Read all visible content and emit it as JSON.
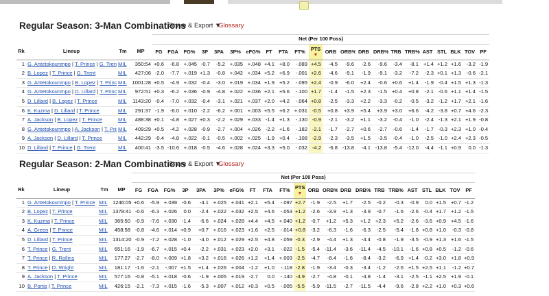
{
  "tables": [
    {
      "title": "Regular Season: 3-Man Combinations",
      "share_label": "Share & Export ▼",
      "glossary_label": "Glossary",
      "group_header": "Net (Per 100 Poss)",
      "columns": [
        "Rk",
        "Lineup",
        "Tm",
        "MP",
        "FG",
        "FGA",
        "FG%",
        "3P",
        "3PA",
        "3P%",
        "eFG%",
        "FT",
        "FTA",
        "FT%",
        "PTS",
        "ORB",
        "ORB%",
        "DRB",
        "DRB%",
        "TRB",
        "TRB%",
        "AST",
        "STL",
        "BLK",
        "TOV",
        "PF"
      ],
      "rows": [
        {
          "rk": "1",
          "players": [
            "G. Antetokounmpo",
            "T. Prince",
            "G. Trent"
          ],
          "tm": "MIL",
          "stats": [
            "350:54",
            "+0.6",
            "-6.8",
            "+.045",
            "-0.7",
            "-5.2",
            "+.035",
            "+.048",
            "+4.1",
            "+8.0",
            "-.089",
            "+4.5",
            "-4.5",
            "-9.6",
            "-2.6",
            "-9.6",
            "-3.4",
            "-8.1",
            "+1.4",
            "+1.2",
            "+1.6",
            "-3.2",
            "-1.9"
          ]
        },
        {
          "rk": "2",
          "players": [
            "B. Lopez",
            "T. Prince",
            "G. Trent"
          ],
          "tm": "MIL",
          "stats": [
            "427:06",
            "-2.0",
            "-7.7",
            "+.019",
            "+1.3",
            "-0.8",
            "+.042",
            "+.034",
            "+5.2",
            "+6.9",
            "-.001",
            "+2.6",
            "-4.6",
            "-9.1",
            "-1.9",
            "-9.1",
            "-3.2",
            "-7.2",
            "-2.3",
            "+0.1",
            "+1.3",
            "-0.6",
            "-2.1"
          ]
        },
        {
          "rk": "3",
          "players": [
            "G. Antetokounmpo",
            "B. Lopez",
            "T. Prince"
          ],
          "tm": "MIL",
          "stats": [
            "1001:28",
            "+0.5",
            "-4.9",
            "+.032",
            "-0.4",
            "-3.0",
            "+.019",
            "+.034",
            "+1.9",
            "+5.2",
            "-.095",
            "+2.4",
            "-0.9",
            "-6.0",
            "+2.4",
            "-0.6",
            "+0.6",
            "+1.4",
            "-1.9",
            "-0.4",
            "+1.5",
            "+1.3",
            "-1.3"
          ]
        },
        {
          "rk": "4",
          "players": [
            "G. Antetokounmpo",
            "D. Lillard",
            "T. Prince"
          ],
          "tm": "MIL",
          "stats": [
            "972:51",
            "+0.3",
            "-6.2",
            "+.036",
            "-0.9",
            "-4.8",
            "+.022",
            "+.036",
            "+2.1",
            "+5.6",
            "-.100",
            "+1.7",
            "-1.4",
            "-1.5",
            "+2.3",
            "-1.5",
            "+0.4",
            "+0.8",
            "-2.1",
            "-0.6",
            "+1.1",
            "+1.4",
            "-1.5"
          ]
        },
        {
          "rk": "5",
          "players": [
            "D. Lillard",
            "B. Lopez",
            "T. Prince"
          ],
          "tm": "MIL",
          "stats": [
            "1143:20",
            "-0.4",
            "-7.0",
            "+.032",
            "-0.4",
            "-3.1",
            "+.021",
            "+.037",
            "+2.0",
            "+4.2",
            "-.064",
            "+0.8",
            "-2.5",
            "-3.3",
            "+2.2",
            "-3.3",
            "-0.2",
            "-0.5",
            "-3.2",
            "-1.2",
            "+1.7",
            "+2.1",
            "-1.6"
          ]
        },
        {
          "rk": "6",
          "players": [
            "K. Kuzma",
            "D. Lillard",
            "T. Prince"
          ],
          "tm": "MIL",
          "stats": [
            "291:37",
            "-1.9",
            "-6.0",
            "+.010",
            "-2.2",
            "-6.2",
            "+.001",
            "+.003",
            "+5.5",
            "+6.2",
            "+.031",
            "-0.5",
            "+0.8",
            "+3.9",
            "+5.4",
            "+3.9",
            "+3.0",
            "+6.6",
            "-4.2",
            "-3.8",
            "+0.7",
            "+4.6",
            "-2.3"
          ]
        },
        {
          "rk": "7",
          "players": [
            "A. Jackson",
            "B. Lopez",
            "T. Prince"
          ],
          "tm": "MIL",
          "stats": [
            "488:38",
            "+0.1",
            "-4.8",
            "+.027",
            "+0.3",
            "-2.2",
            "+.029",
            "+.033",
            "-1.4",
            "+1.3",
            "-.130",
            "-0.9",
            "-2.1",
            "-3.2",
            "+1.1",
            "-3.2",
            "-0.4",
            "-1.0",
            "-2.4",
            "-1.3",
            "+2.1",
            "+1.9",
            "-0.8"
          ]
        },
        {
          "rk": "8",
          "players": [
            "G. Antetokounmpo",
            "A. Jackson",
            "T. Prince"
          ],
          "tm": "MIL",
          "stats": [
            "409:29",
            "+0.5",
            "-4.2",
            "+.028",
            "-0.9",
            "-2.7",
            "+.004",
            "+.026",
            "-2.2",
            "+1.6",
            "-.182",
            "-2.1",
            "-1.7",
            "-2.7",
            "+0.6",
            "-2.7",
            "-0.6",
            "-1.4",
            "-1.7",
            "-0.3",
            "+2.3",
            "+1.0",
            "-0.4"
          ]
        },
        {
          "rk": "9",
          "players": [
            "A. Jackson",
            "D. Lillard",
            "T. Prince"
          ],
          "tm": "MIL",
          "stats": [
            "442:29",
            "-0.4",
            "-4.8",
            "+.022",
            "-0.1",
            "-0.5",
            "+.002",
            "+.025",
            "-1.9",
            "+0.4",
            "-.108",
            "-2.9",
            "-2.3",
            "-3.5",
            "+1.5",
            "-3.5",
            "-0.4",
            "-1.0",
            "-2.5",
            "-1.0",
            "+2.4",
            "+2.3",
            "-0.5"
          ]
        },
        {
          "rk": "10",
          "players": [
            "D. Lillard",
            "T. Prince",
            "G. Trent"
          ],
          "tm": "MIL",
          "stats": [
            "400:41",
            "-3.5",
            "-10.6",
            "+.018",
            "-0.5",
            "-4.6",
            "+.028",
            "+.024",
            "+3.3",
            "+5.0",
            "-.032",
            "-4.2",
            "-6.8",
            "-13.8",
            "-4.1",
            "-13.8",
            "-5.4",
            "-12.0",
            "-4.4",
            "-1.1",
            "+0.9",
            "0.0",
            "-1.3"
          ]
        }
      ]
    },
    {
      "title": "Regular Season: 2-Man Combinations",
      "share_label": "Share & Export ▼",
      "glossary_label": "Glossary",
      "group_header": "Net (Per 100 Poss)",
      "columns": [
        "Rk",
        "Lineup",
        "Tm",
        "MP",
        "FG",
        "FGA",
        "FG%",
        "3P",
        "3PA",
        "3P%",
        "eFG%",
        "FT",
        "FTA",
        "FT%",
        "PTS",
        "ORB",
        "ORB%",
        "DRB",
        "DRB%",
        "TRB",
        "TRB%",
        "AST",
        "STL",
        "BLK",
        "TOV",
        "PF"
      ],
      "rows": [
        {
          "rk": "1",
          "players": [
            "G. Antetokounmpo",
            "T. Prince"
          ],
          "tm": "MIL",
          "stats": [
            "1246:05",
            "+0.6",
            "-5.9",
            "+.039",
            "-0.6",
            "-4.1",
            "+.025",
            "+.041",
            "+2.1",
            "+5.4",
            "-.097",
            "+2.7",
            "-1.9",
            "-2.5",
            "+1.7",
            "-2.5",
            "-0.2",
            "-0.3",
            "-0.9",
            "0.0",
            "+1.5",
            "+0.7",
            "-1.2"
          ]
        },
        {
          "rk": "2",
          "players": [
            "B. Lopez",
            "T. Prince"
          ],
          "tm": "MIL",
          "stats": [
            "1378:41",
            "-0.6",
            "-6.3",
            "+.026",
            "0.0",
            "-2.4",
            "+.022",
            "+.032",
            "+2.5",
            "+4.6",
            "-.053",
            "+1.2",
            "-2.6",
            "-3.9",
            "+1.3",
            "-3.9",
            "-0.7",
            "-1.6",
            "-2.6",
            "-0.4",
            "+1.7",
            "+1.2",
            "-1.5"
          ]
        },
        {
          "rk": "3",
          "players": [
            "K. Kuzma",
            "T. Prince"
          ],
          "tm": "MIL",
          "stats": [
            "365:50",
            "-0.9",
            "-7.6",
            "+.030",
            "-1.4",
            "-6.6",
            "+.024",
            "+.028",
            "+4.4",
            "+4.5",
            "+.040",
            "+1.2",
            "-0.7",
            "+1.2",
            "+5.3",
            "+1.2",
            "+2.3",
            "+5.2",
            "-2.6",
            "-3.6",
            "+0.9",
            "+4.5",
            "-1.6"
          ]
        },
        {
          "rk": "4",
          "players": [
            "A. Green",
            "T. Prince"
          ],
          "tm": "MIL",
          "stats": [
            "458:58",
            "-0.8",
            "-4.6",
            "+.014",
            "+0.9",
            "+0.7",
            "+.016",
            "+.023",
            "+1.6",
            "+2.5",
            "-.014",
            "+0.8",
            "-3.2",
            "-6.3",
            "-1.6",
            "-6.3",
            "-2.5",
            "-5.4",
            "-1.8",
            "+0.8",
            "+1.0",
            "-0.3",
            "-0.8"
          ]
        },
        {
          "rk": "5",
          "players": [
            "D. Lillard",
            "T. Prince"
          ],
          "tm": "MIL",
          "stats": [
            "1314:20",
            "-0.9",
            "-7.2",
            "+.028",
            "-1.0",
            "-4.0",
            "+.012",
            "+.029",
            "+2.5",
            "+4.8",
            "-.059",
            "-0.3",
            "-2.9",
            "-4.4",
            "+1.3",
            "-4.4",
            "-0.8",
            "-1.9",
            "-3.5",
            "-0.9",
            "+1.3",
            "+1.6",
            "-1.5"
          ]
        },
        {
          "rk": "6",
          "players": [
            "T. Prince",
            "G. Trent"
          ],
          "tm": "MIL",
          "stats": [
            "651:16",
            "-1.9",
            "-6.7",
            "+.015",
            "+0.4",
            "-2.2",
            "+.031",
            "+.023",
            "+2.0",
            "+3.1",
            "-.022",
            "-1.5",
            "-5.4",
            "-11.4",
            "-3.6",
            "-11.4",
            "-4.5",
            "-10.1",
            "-1.6",
            "+0.8",
            "+0.5",
            "-1.2",
            "-0.6"
          ]
        },
        {
          "rk": "7",
          "players": [
            "T. Prince",
            "R. Rollins"
          ],
          "tm": "MIL",
          "stats": [
            "177:27",
            "-2.7",
            "-8.0",
            "+.009",
            "+1.8",
            "+3.2",
            "+.016",
            "+.026",
            "+1.2",
            "+1.4",
            "+.003",
            "-2.5",
            "-4.7",
            "-8.4",
            "-1.6",
            "-8.4",
            "-3.2",
            "-6.9",
            "+1.4",
            "-0.2",
            "+3.0",
            "+1.8",
            "+0.9"
          ]
        },
        {
          "rk": "8",
          "players": [
            "T. Prince",
            "D. Wright"
          ],
          "tm": "MIL",
          "stats": [
            "181:17",
            "-1.6",
            "-2.1",
            "-.007",
            "+1.5",
            "+1.4",
            "+.026",
            "+.004",
            "-1.2",
            "+1.0",
            "-.118",
            "-2.8",
            "-1.9",
            "-3.4",
            "-0.3",
            "-3.4",
            "-1.2",
            "-2.6",
            "+1.5",
            "+2.5",
            "+1.1",
            "-1.2",
            "+0.7"
          ]
        },
        {
          "rk": "9",
          "players": [
            "A. Jackson",
            "T. Prince"
          ],
          "tm": "MIL",
          "stats": [
            "577:16",
            "-0.8",
            "-5.1",
            "+.018",
            "-0.6",
            "-1.9",
            "+.005",
            "+.019",
            "-2.7",
            "0.0",
            "-.140",
            "-4.9",
            "-2.7",
            "-4.8",
            "-0.1",
            "-4.8",
            "-1.4",
            "-3.1",
            "-2.5",
            "-1.1",
            "+2.5",
            "+1.9",
            "-0.1"
          ]
        },
        {
          "rk": "10",
          "players": [
            "B. Portis",
            "T. Prince"
          ],
          "tm": "MIL",
          "stats": [
            "426:15",
            "-2.1",
            "-7.3",
            "+.015",
            "-1.6",
            "-5.3",
            "+.007",
            "+.012",
            "+0.3",
            "+0.5",
            "-.005",
            "-5.5",
            "-5.9",
            "-11.5",
            "-2.7",
            "-11.5",
            "-4.4",
            "-9.6",
            "-2.8",
            "+2.2",
            "+1.0",
            "+0.3",
            "+0.6"
          ]
        }
      ]
    }
  ]
}
